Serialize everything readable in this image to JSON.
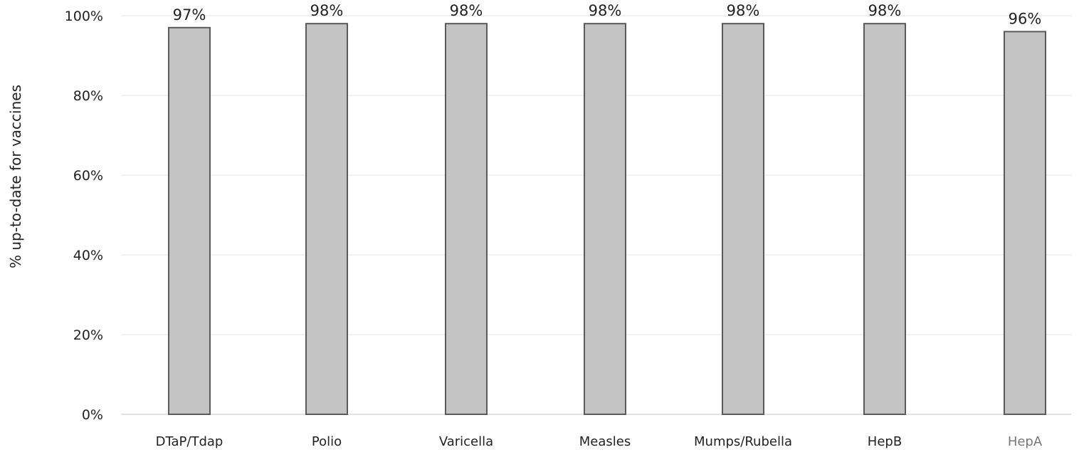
{
  "chart_data": {
    "type": "bar",
    "title": "",
    "xlabel": "",
    "ylabel": "% up-to-date for vaccines",
    "categories": [
      "DTaP/Tdap",
      "Polio",
      "Varicella",
      "Measles",
      "Mumps/Rubella",
      "HepB",
      "HepA"
    ],
    "values": [
      97,
      98,
      98,
      98,
      98,
      98,
      96
    ],
    "data_labels": [
      "97%",
      "98%",
      "98%",
      "98%",
      "98%",
      "98%",
      "96%"
    ],
    "ylim": [
      0,
      100
    ],
    "y_ticks": [
      0,
      20,
      40,
      60,
      80,
      100
    ],
    "y_tick_labels": [
      "0%",
      "20%",
      "40%",
      "60%",
      "80%",
      "100%"
    ],
    "grid": true,
    "legend": "none",
    "colors": {
      "bar_fill": "#c4c4c4",
      "bar_stroke": "#5a5a5a",
      "grid": "#e6e6e6",
      "text": "#222222",
      "muted_text": "#777777"
    }
  }
}
